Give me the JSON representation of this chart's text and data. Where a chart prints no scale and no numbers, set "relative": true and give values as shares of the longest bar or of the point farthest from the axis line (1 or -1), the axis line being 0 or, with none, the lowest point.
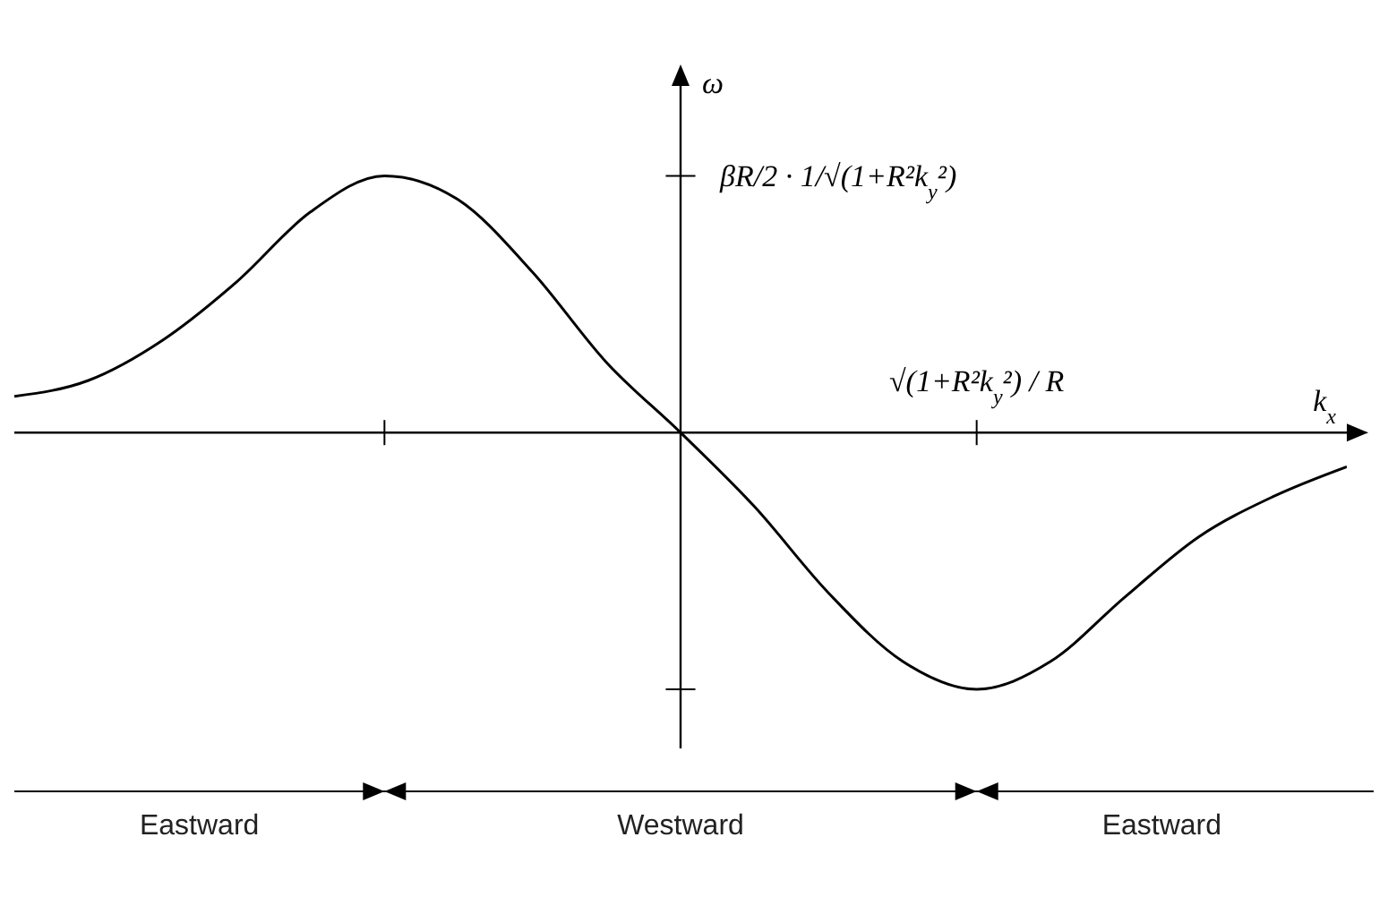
{
  "chart_data": {
    "type": "line",
    "relative": true,
    "xlabel": "k$_{x}$",
    "ylabel": "ω",
    "categories": [
      null,
      null,
      null,
      null,
      null,
      null,
      null,
      null,
      null,
      null,
      null,
      null,
      null,
      null,
      null,
      null,
      null,
      null,
      null
    ],
    "values": [
      0.141,
      0.203,
      0.359,
      0.586,
      0.859,
      1,
      0.906,
      0.625,
      0.273,
      0,
      -0.289,
      -0.625,
      -0.891,
      -1,
      -0.891,
      -0.641,
      -0.406,
      -0.25,
      -0.133
    ],
    "color": "#000000",
    "marker": "none",
    "line_style": "solid",
    "annotations": [
      "βR/2 · 1/√(1+R²k$_{y}$²)",
      "√(1+R²k$_{y}$²) / R",
      "Eastward",
      "Westward",
      "Eastward"
    ]
  }
}
